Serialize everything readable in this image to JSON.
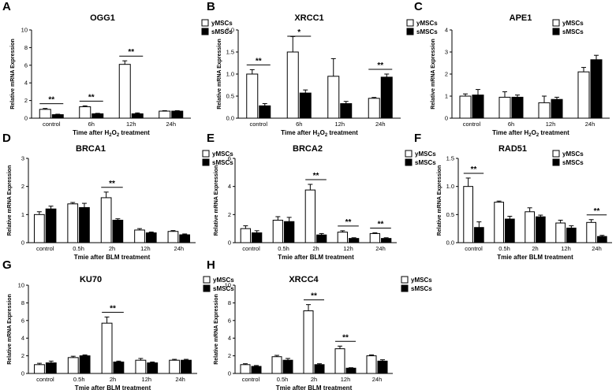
{
  "figure": {
    "legend": {
      "series_a": "yMSCs",
      "series_b": "sMSCs"
    }
  },
  "chart_data": [
    {
      "type": "bar",
      "panel": "A",
      "title": "OGG1",
      "ylabel": "Relative mRNA Expression",
      "xlabel_text": "Time after H2O2 treatment",
      "xlabel_parts": [
        "Time after H",
        "2",
        "O",
        "2",
        " treatment"
      ],
      "categories": [
        "control",
        "6h",
        "12h",
        "24h"
      ],
      "ylim": [
        0,
        10
      ],
      "yticks": [
        0,
        2,
        4,
        6,
        8,
        10
      ],
      "series": [
        {
          "name": "yMSCs",
          "values": [
            1.0,
            1.3,
            6.1,
            0.8
          ],
          "errors": [
            0.1,
            0.1,
            0.4,
            0.05
          ]
        },
        {
          "name": "sMSCs",
          "values": [
            0.4,
            0.5,
            0.5,
            0.8
          ],
          "errors": [
            0.05,
            0.05,
            0.1,
            0.05
          ]
        }
      ],
      "significance": [
        {
          "category": 0,
          "label": "**"
        },
        {
          "category": 1,
          "label": "**"
        },
        {
          "category": 2,
          "label": "**"
        }
      ]
    },
    {
      "type": "bar",
      "panel": "B",
      "title": "XRCC1",
      "ylabel": "Relative mRNA Expression",
      "xlabel_text": "Time after H2O2 treatment",
      "xlabel_parts": [
        "Time after H",
        "2",
        "O",
        "2",
        " treatment"
      ],
      "categories": [
        "control",
        "6h",
        "12h",
        "24h"
      ],
      "ylim": [
        0,
        2.0
      ],
      "yticks": [
        0.0,
        0.5,
        1.0,
        1.5,
        2.0
      ],
      "series": [
        {
          "name": "yMSCs",
          "values": [
            1.0,
            1.5,
            0.95,
            0.45
          ],
          "errors": [
            0.1,
            0.35,
            0.4,
            0.02
          ]
        },
        {
          "name": "sMSCs",
          "values": [
            0.28,
            0.57,
            0.33,
            0.93
          ],
          "errors": [
            0.05,
            0.07,
            0.05,
            0.07
          ]
        }
      ],
      "significance": [
        {
          "category": 0,
          "label": "**"
        },
        {
          "category": 1,
          "label": "*"
        },
        {
          "category": 3,
          "label": "**"
        }
      ]
    },
    {
      "type": "bar",
      "panel": "C",
      "title": "APE1",
      "ylabel": "Relative mRNA Expression",
      "xlabel_text": "Time after H2O2 treatment",
      "xlabel_parts": [
        "Time after H",
        "2",
        "O",
        "2",
        " treatment"
      ],
      "categories": [
        "control",
        "6h",
        "12h",
        "24h"
      ],
      "ylim": [
        0,
        4
      ],
      "yticks": [
        0,
        1,
        2,
        3,
        4
      ],
      "series": [
        {
          "name": "yMSCs",
          "values": [
            1.0,
            0.95,
            0.7,
            2.1
          ],
          "errors": [
            0.1,
            0.25,
            0.3,
            0.2
          ]
        },
        {
          "name": "sMSCs",
          "values": [
            1.05,
            0.95,
            0.85,
            2.65
          ],
          "errors": [
            0.25,
            0.1,
            0.1,
            0.2
          ]
        }
      ],
      "significance": []
    },
    {
      "type": "bar",
      "panel": "D",
      "title": "BRCA1",
      "ylabel": "Relative mRNA Expression",
      "xlabel_text": "Tmie after BLM treatment",
      "xlabel_parts": [
        "Tmie after BLM treatment"
      ],
      "categories": [
        "control",
        "0.5h",
        "2h",
        "12h",
        "24h"
      ],
      "ylim": [
        0,
        3
      ],
      "yticks": [
        0,
        1,
        2,
        3
      ],
      "series": [
        {
          "name": "yMSCs",
          "values": [
            1.0,
            1.38,
            1.6,
            0.45,
            0.4
          ],
          "errors": [
            0.1,
            0.05,
            0.2,
            0.05,
            0.03
          ]
        },
        {
          "name": "sMSCs",
          "values": [
            1.2,
            1.25,
            0.8,
            0.35,
            0.28
          ],
          "errors": [
            0.1,
            0.15,
            0.05,
            0.03,
            0.03
          ]
        }
      ],
      "significance": [
        {
          "category": 2,
          "label": "**"
        }
      ]
    },
    {
      "type": "bar",
      "panel": "E",
      "title": "BRCA2",
      "ylabel": "Relative mRNA Expression",
      "xlabel_text": "Tmie after BLM treatment",
      "xlabel_parts": [
        "Tmie after BLM treatment"
      ],
      "categories": [
        "control",
        "0.5h",
        "2h",
        "12h",
        "24h"
      ],
      "ylim": [
        0,
        6
      ],
      "yticks": [
        0,
        2,
        4,
        6
      ],
      "series": [
        {
          "name": "yMSCs",
          "values": [
            1.0,
            1.6,
            3.75,
            0.75,
            0.65
          ],
          "errors": [
            0.2,
            0.25,
            0.4,
            0.1,
            0.05
          ]
        },
        {
          "name": "sMSCs",
          "values": [
            0.7,
            1.5,
            0.55,
            0.3,
            0.3
          ],
          "errors": [
            0.15,
            0.3,
            0.1,
            0.05,
            0.05
          ]
        }
      ],
      "significance": [
        {
          "category": 2,
          "label": "**"
        },
        {
          "category": 3,
          "label": "**"
        },
        {
          "category": 4,
          "label": "**"
        }
      ]
    },
    {
      "type": "bar",
      "panel": "F",
      "title": "RAD51",
      "ylabel": "Relative mRNA Expression",
      "xlabel_text": "Tmie after BLM treatment",
      "xlabel_parts": [
        "Tmie after BLM treatment"
      ],
      "categories": [
        "control",
        "0.5h",
        "2h",
        "12h",
        "24h"
      ],
      "ylim": [
        0,
        1.5
      ],
      "yticks": [
        0.0,
        0.5,
        1.0,
        1.5
      ],
      "series": [
        {
          "name": "yMSCs",
          "values": [
            1.0,
            0.72,
            0.55,
            0.35,
            0.36
          ],
          "errors": [
            0.15,
            0.02,
            0.07,
            0.05,
            0.05
          ]
        },
        {
          "name": "sMSCs",
          "values": [
            0.27,
            0.42,
            0.46,
            0.26,
            0.11
          ],
          "errors": [
            0.1,
            0.05,
            0.03,
            0.04,
            0.02
          ]
        }
      ],
      "significance": [
        {
          "category": 0,
          "label": "**"
        },
        {
          "category": 4,
          "label": "**"
        }
      ]
    },
    {
      "type": "bar",
      "panel": "G",
      "title": "KU70",
      "ylabel": "Relative mRNA Expression",
      "xlabel_text": "Tmie after BLM treatment",
      "xlabel_parts": [
        "Tmie after BLM treatment"
      ],
      "categories": [
        "control",
        "0.5h",
        "2h",
        "12h",
        "24h"
      ],
      "ylim": [
        0,
        10
      ],
      "yticks": [
        0,
        2,
        4,
        6,
        8,
        10
      ],
      "series": [
        {
          "name": "yMSCs",
          "values": [
            1.0,
            1.8,
            5.7,
            1.5,
            1.5
          ],
          "errors": [
            0.15,
            0.15,
            0.7,
            0.2,
            0.1
          ]
        },
        {
          "name": "sMSCs",
          "values": [
            1.2,
            2.0,
            1.3,
            1.2,
            1.5
          ],
          "errors": [
            0.2,
            0.1,
            0.1,
            0.1,
            0.1
          ]
        }
      ],
      "significance": [
        {
          "category": 2,
          "label": "**"
        }
      ]
    },
    {
      "type": "bar",
      "panel": "H",
      "title": "XRCC4",
      "ylabel": "Relative mRNA Expression",
      "xlabel_text": "Tmie after BLM treatment",
      "xlabel_parts": [
        "Tmie after BLM treatment"
      ],
      "categories": [
        "control",
        "0.5h",
        "2h",
        "12h",
        "24h"
      ],
      "ylim": [
        0,
        10
      ],
      "yticks": [
        0,
        2,
        4,
        6,
        8,
        10
      ],
      "series": [
        {
          "name": "yMSCs",
          "values": [
            1.0,
            1.9,
            7.1,
            2.8,
            2.0
          ],
          "errors": [
            0.1,
            0.15,
            0.7,
            0.3,
            0.1
          ]
        },
        {
          "name": "sMSCs",
          "values": [
            0.8,
            1.5,
            1.0,
            0.6,
            1.4
          ],
          "errors": [
            0.1,
            0.2,
            0.1,
            0.05,
            0.15
          ]
        }
      ],
      "significance": [
        {
          "category": 2,
          "label": "**"
        },
        {
          "category": 3,
          "label": "**"
        }
      ]
    }
  ]
}
